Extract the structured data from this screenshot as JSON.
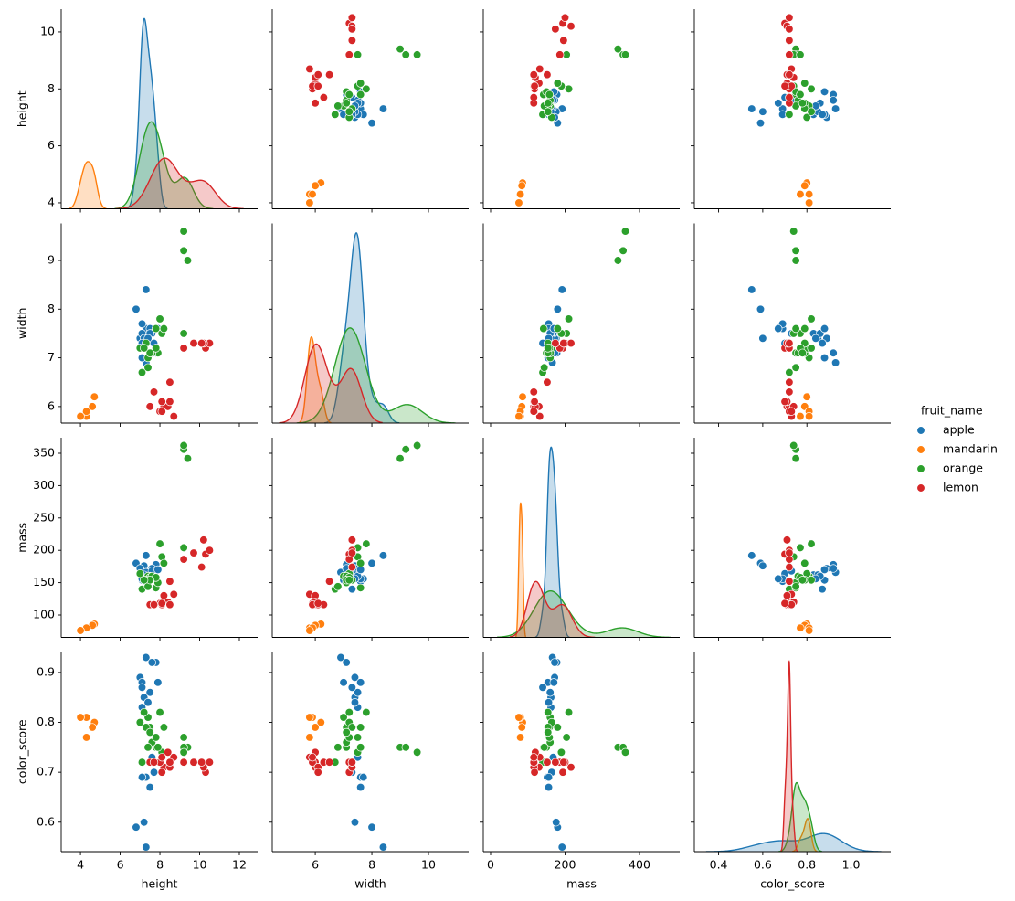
{
  "chart_data": {
    "type": "pairplot",
    "variables": [
      "height",
      "width",
      "mass",
      "color_score"
    ],
    "legend_title": "fruit_name",
    "axes": [
      {
        "xlim": [
          3.03,
          12.92
        ],
        "xticks": [
          4,
          6,
          8,
          10,
          12
        ],
        "ylim": [
          3.79,
          10.8
        ],
        "yticks": [
          4,
          6,
          8,
          10
        ]
      },
      {
        "xlim": [
          4.48,
          11.42
        ],
        "xticks": [
          6,
          8,
          10
        ],
        "ylim": [
          5.66,
          9.76
        ],
        "yticks": [
          6,
          7,
          8,
          9
        ]
      },
      {
        "xlim": [
          -19.6,
          508
        ],
        "xticks": [
          0,
          200,
          400
        ],
        "ylim": [
          65.4,
          374
        ],
        "yticks": [
          100,
          150,
          200,
          250,
          300,
          350
        ]
      },
      {
        "xlim": [
          0.29,
          1.18
        ],
        "xticks": [
          0.4,
          0.6,
          0.8,
          {
            "value": 1.0,
            "label": "1.0"
          }
        ],
        "ylim": [
          0.541,
          0.941
        ],
        "yticks": [
          0.6,
          0.7,
          0.8,
          0.9
        ]
      }
    ],
    "series": [
      {
        "name": "apple",
        "color": "#1f77b4",
        "height": [
          7.3,
          6.8,
          7.2,
          7.8,
          7.0,
          7.3,
          7.6,
          7.1,
          7.7,
          7.3,
          7.1,
          7.5,
          7.6,
          7.1,
          7.2,
          7.5,
          7.4,
          7.1,
          7.9
        ],
        "width": [
          8.4,
          8.0,
          7.4,
          7.1,
          7.4,
          6.9,
          7.1,
          7.0,
          7.3,
          7.6,
          7.7,
          7.6,
          7.5,
          7.5,
          7.4,
          7.5,
          7.4,
          7.3,
          7.6
        ],
        "mass": [
          192,
          180,
          176,
          178,
          172,
          166,
          172,
          154,
          164,
          152,
          156,
          156,
          168,
          162,
          162,
          160,
          156,
          140,
          170
        ],
        "color_score": [
          0.55,
          0.59,
          0.6,
          0.92,
          0.89,
          0.93,
          0.92,
          0.88,
          0.7,
          0.69,
          0.69,
          0.67,
          0.73,
          0.83,
          0.85,
          0.86,
          0.84,
          0.87,
          0.88
        ]
      },
      {
        "name": "mandarin",
        "color": "#ff7f0e",
        "height": [
          4.7,
          4.6,
          4.3,
          4.3,
          4.0
        ],
        "width": [
          6.2,
          6.0,
          5.8,
          5.9,
          5.8
        ],
        "mass": [
          86,
          84,
          80,
          80,
          76
        ],
        "color_score": [
          0.8,
          0.79,
          0.77,
          0.81,
          0.81
        ]
      },
      {
        "name": "orange",
        "color": "#2ca02c",
        "height": [
          9.4,
          9.2,
          9.2,
          9.2,
          7.1,
          7.4,
          7.5,
          8.0,
          7.0,
          8.1,
          7.8,
          7.9,
          7.6,
          7.3,
          7.8,
          7.4,
          7.5,
          8.2,
          7.2
        ],
        "width": [
          9.0,
          9.2,
          9.6,
          7.5,
          6.7,
          7.0,
          7.1,
          7.8,
          7.2,
          7.5,
          7.6,
          7.1,
          7.1,
          7.3,
          7.2,
          6.8,
          7.1,
          7.6,
          7.2
        ],
        "mass": [
          342,
          356,
          362,
          204,
          140,
          160,
          158,
          210,
          164,
          190,
          142,
          150,
          160,
          154,
          158,
          144,
          154,
          180,
          154
        ],
        "color_score": [
          0.75,
          0.75,
          0.74,
          0.77,
          0.72,
          0.81,
          0.79,
          0.82,
          0.8,
          0.74,
          0.75,
          0.75,
          0.76,
          0.79,
          0.77,
          0.75,
          0.78,
          0.79,
          0.82
        ]
      },
      {
        "name": "lemon",
        "color": "#d62728",
        "height": [
          10.3,
          10.5,
          9.2,
          10.2,
          9.7,
          10.1,
          8.7,
          8.2,
          7.5,
          8.0,
          8.4,
          8.5,
          7.7,
          8.1,
          8.5,
          8.1
        ],
        "width": [
          7.2,
          7.3,
          7.2,
          7.3,
          7.3,
          7.3,
          5.8,
          6.0,
          6.0,
          5.9,
          6.0,
          6.1,
          6.3,
          5.9,
          6.5,
          6.1
        ],
        "mass": [
          194,
          200,
          186,
          216,
          196,
          174,
          132,
          130,
          116,
          118,
          120,
          116,
          116,
          116,
          152,
          118
        ],
        "color_score": [
          0.7,
          0.72,
          0.72,
          0.71,
          0.72,
          0.72,
          0.73,
          0.71,
          0.72,
          0.72,
          0.74,
          0.71,
          0.72,
          0.73,
          0.72,
          0.7
        ]
      }
    ]
  }
}
